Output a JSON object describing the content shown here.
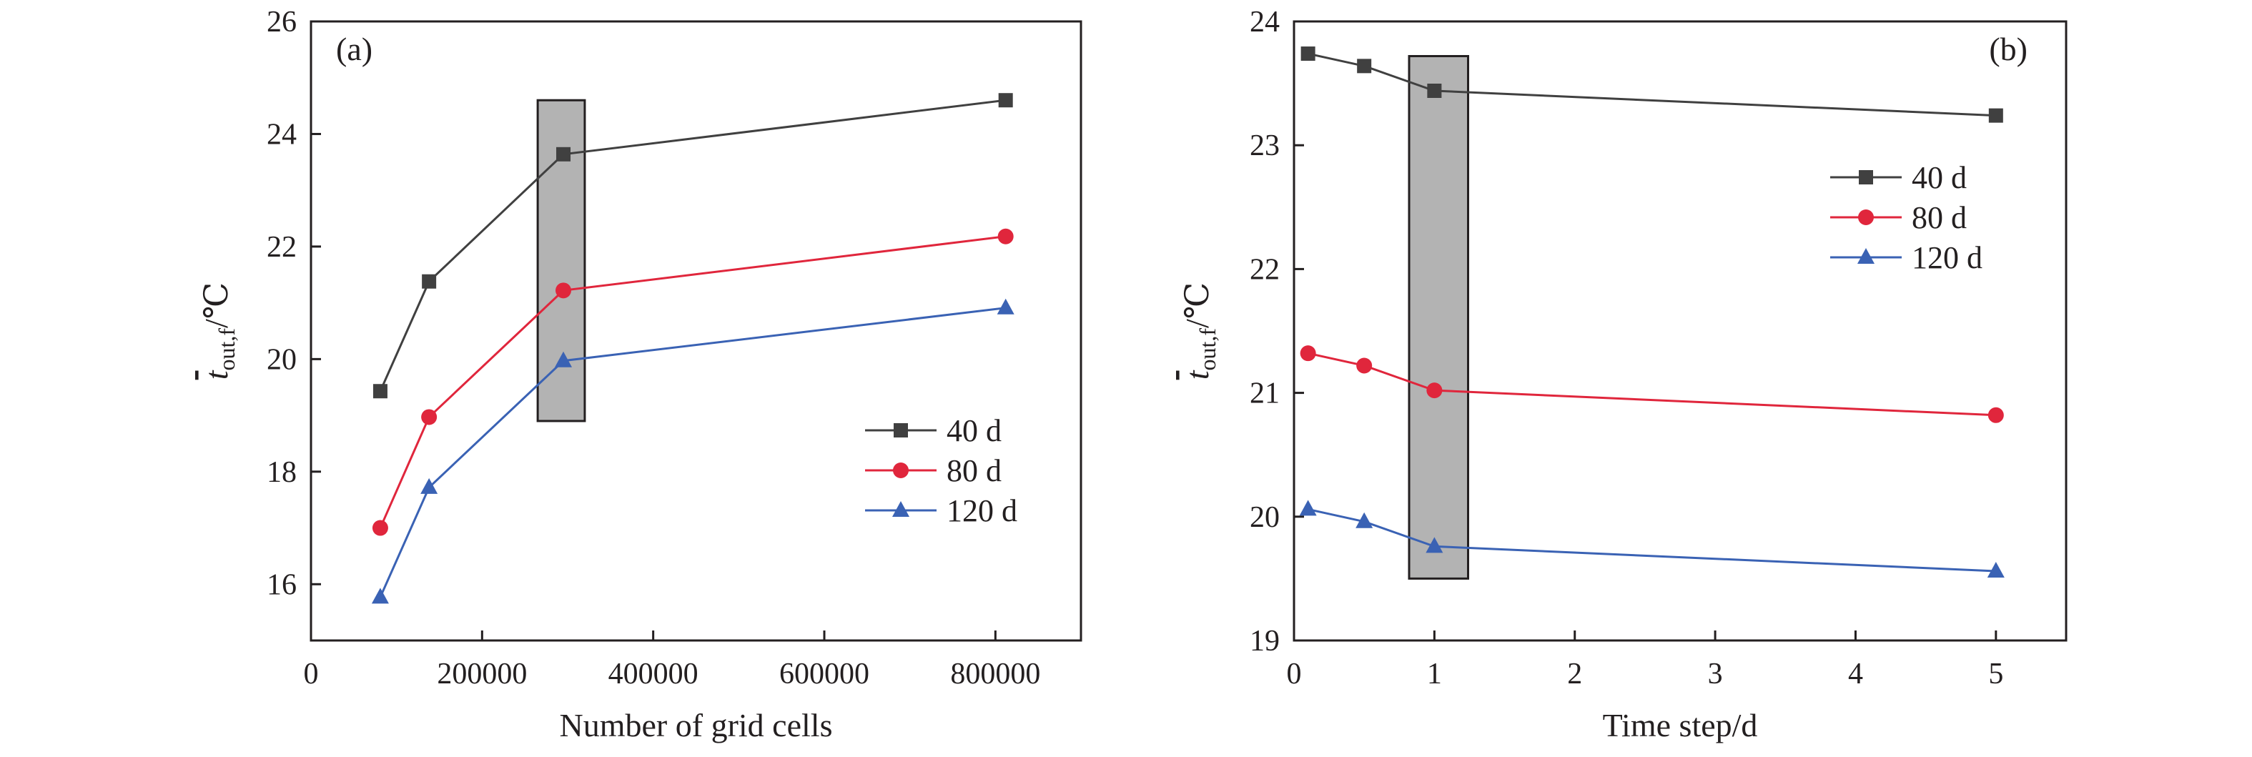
{
  "charts": [
    {
      "panel_label": "(a)",
      "xlabel": "Number of grid cells",
      "ylabel": {
        "symbol": "t",
        "sub": "out,f",
        "unit": "/℃"
      },
      "x_ticks": [
        0,
        200000,
        400000,
        600000,
        800000
      ],
      "y_ticks": [
        16,
        18,
        20,
        22,
        24,
        26
      ],
      "xlim": [
        0,
        900000
      ],
      "ylim": [
        15,
        26
      ],
      "highlight": {
        "x": [
          265000,
          320000
        ],
        "y": [
          18.9,
          24.6
        ],
        "color": "#b3b3b3"
      },
      "legend_position": "center-right"
    },
    {
      "panel_label": "(b)",
      "xlabel": "Time step/d",
      "ylabel": {
        "symbol": "t",
        "sub": "out,f",
        "unit": "/℃"
      },
      "x_ticks": [
        0,
        1,
        2,
        3,
        4,
        5
      ],
      "y_ticks": [
        19,
        20,
        21,
        22,
        23,
        24
      ],
      "xlim": [
        0,
        5.5
      ],
      "ylim": [
        19,
        24
      ],
      "highlight": {
        "x": [
          0.82,
          1.24
        ],
        "y": [
          19.5,
          23.72
        ],
        "color": "#b3b3b3"
      },
      "legend_position": "top-right"
    }
  ],
  "chart_data": [
    {
      "type": "line",
      "title": "",
      "xlabel": "Number of grid cells",
      "ylabel": "t̄out,f/℃",
      "xlim": [
        0,
        900000
      ],
      "ylim": [
        15,
        26
      ],
      "grid": false,
      "series": [
        {
          "name": "40 d",
          "color": "#404040",
          "marker": "square",
          "x": [
            81000,
            138000,
            295000,
            812000
          ],
          "y": [
            19.43,
            21.38,
            23.64,
            24.6
          ]
        },
        {
          "name": "80 d",
          "color": "#e0263c",
          "marker": "circle",
          "x": [
            81000,
            138000,
            295000,
            812000
          ],
          "y": [
            17.0,
            18.97,
            21.22,
            22.18
          ]
        },
        {
          "name": "120 d",
          "color": "#3a62b4",
          "marker": "triangle",
          "x": [
            81000,
            138000,
            295000,
            812000
          ],
          "y": [
            15.77,
            17.72,
            19.97,
            20.91
          ]
        }
      ]
    },
    {
      "type": "line",
      "title": "",
      "xlabel": "Time step/d",
      "ylabel": "t̄out,f/℃",
      "xlim": [
        0,
        5.5
      ],
      "ylim": [
        19,
        24
      ],
      "grid": false,
      "series": [
        {
          "name": "40 d",
          "color": "#404040",
          "marker": "square",
          "x": [
            0.1,
            0.5,
            1,
            5
          ],
          "y": [
            23.74,
            23.64,
            23.44,
            23.24
          ]
        },
        {
          "name": "80 d",
          "color": "#e0263c",
          "marker": "circle",
          "x": [
            0.1,
            0.5,
            1,
            5
          ],
          "y": [
            21.32,
            21.22,
            21.02,
            20.82
          ]
        },
        {
          "name": "120 d",
          "color": "#3a62b4",
          "marker": "triangle",
          "x": [
            0.1,
            0.5,
            1,
            5
          ],
          "y": [
            20.06,
            19.96,
            19.76,
            19.56
          ]
        }
      ]
    }
  ]
}
